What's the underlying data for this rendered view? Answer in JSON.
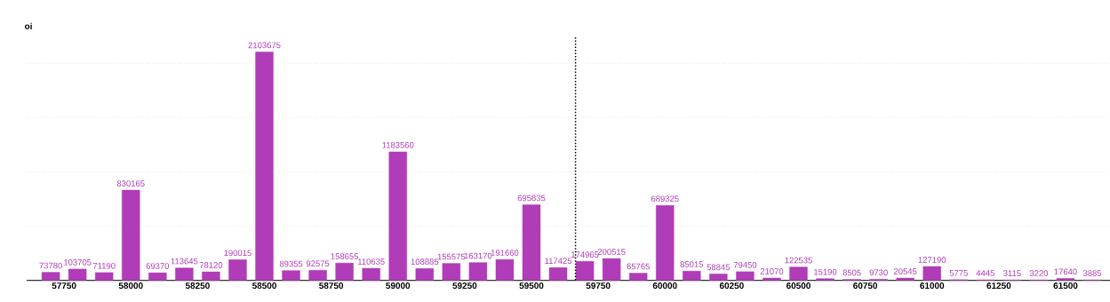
{
  "chart_data": {
    "type": "bar",
    "ylabel": "oi",
    "x": [
      57700,
      57800,
      57900,
      58000,
      58100,
      58200,
      58300,
      58400,
      58500,
      58600,
      58700,
      58800,
      58900,
      59000,
      59100,
      59200,
      59300,
      59400,
      59500,
      59600,
      59700,
      59800,
      59900,
      60000,
      60100,
      60200,
      60300,
      60400,
      60500,
      60600,
      60700,
      60800,
      60900,
      61000,
      61100,
      61200,
      61300,
      61400,
      61500,
      61600
    ],
    "values": [
      73780,
      103705,
      71190,
      830165,
      69370,
      113645,
      78120,
      190015,
      2103675,
      89355,
      92575,
      158655,
      110635,
      1183560,
      108885,
      155575,
      163170,
      191660,
      695835,
      117425,
      174965,
      200515,
      65765,
      689325,
      85015,
      58845,
      79450,
      21070,
      122535,
      15190,
      8505,
      9730,
      20545,
      127190,
      5775,
      4445,
      3115,
      3220,
      17640,
      3885
    ],
    "color": "#b03cb8",
    "data_labels": true,
    "xlim": [
      57610,
      61690
    ],
    "xticks": [
      57750,
      58000,
      58250,
      58500,
      58750,
      59000,
      59250,
      59500,
      59750,
      60000,
      60250,
      60500,
      60750,
      61000,
      61250,
      61500
    ],
    "ylim": [
      0,
      2250000
    ],
    "yticks": [
      {
        "value": 0,
        "label": null
      },
      {
        "value": 500000,
        "label": null
      },
      {
        "value": 1000000,
        "label": null
      },
      {
        "value": 1500000,
        "label": null
      },
      {
        "value": 2000000,
        "label": null
      }
    ],
    "grid": "y",
    "ref_lines": [
      {
        "axis": "x",
        "value": 59665,
        "line_style": "dotted",
        "color": "#000000"
      }
    ]
  }
}
